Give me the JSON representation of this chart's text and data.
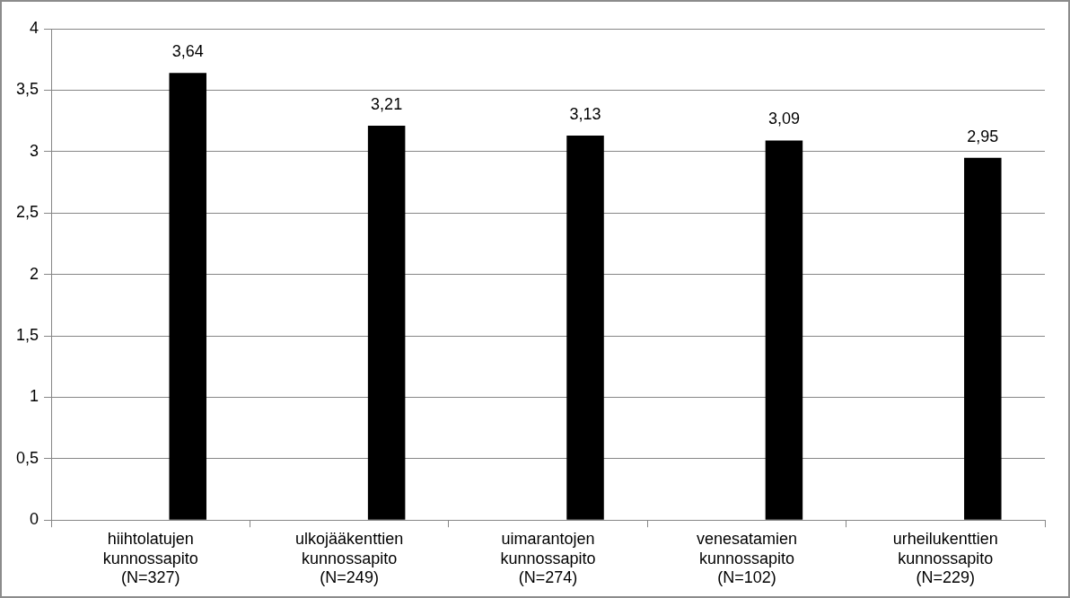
{
  "chart_data": {
    "type": "bar",
    "categories": [
      "hiihtolatujen kunnossapito (N=327)",
      "ulkojääkenttien kunnossapito (N=249)",
      "uimarantojen kunnossapito (N=274)",
      "venesatamien kunnossapito (N=102)",
      "urheilukenttien kunnossapito (N=229)"
    ],
    "values": [
      3.64,
      3.21,
      3.13,
      3.09,
      2.95
    ],
    "value_labels": [
      "3,64",
      "3,21",
      "3,13",
      "3,09",
      "2,95"
    ],
    "color": "#000000",
    "ylim": [
      0,
      4
    ],
    "yticks": [
      {
        "value": 0,
        "label": "0"
      },
      {
        "value": 0.5,
        "label": "0,5"
      },
      {
        "value": 1,
        "label": "1"
      },
      {
        "value": 1.5,
        "label": "1,5"
      },
      {
        "value": 2,
        "label": "2"
      },
      {
        "value": 2.5,
        "label": "2,5"
      },
      {
        "value": 3,
        "label": "3"
      },
      {
        "value": 3.5,
        "label": "3,5"
      },
      {
        "value": 4,
        "label": "4"
      }
    ],
    "grid": "y",
    "legend": false
  }
}
